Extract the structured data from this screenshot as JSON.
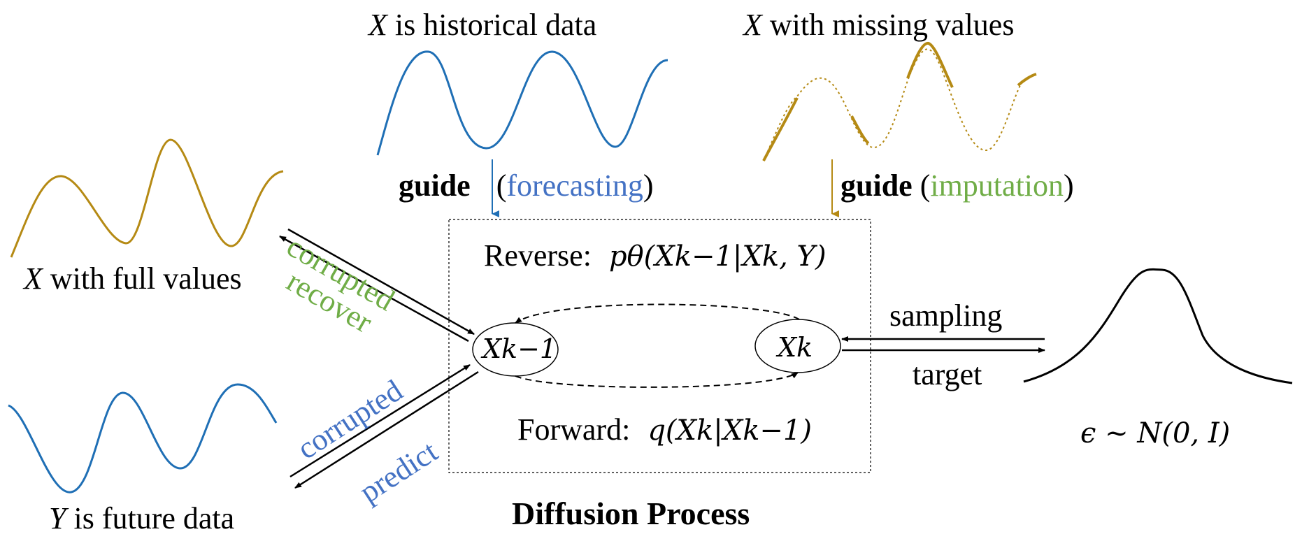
{
  "colors": {
    "blue": "#1F6FB5",
    "gold": "#B58A14",
    "green": "#70AD47",
    "text_blue": "#4472C4",
    "black": "#000000"
  },
  "top_left": {
    "var": "X",
    "text": " is historical data"
  },
  "top_right": {
    "var": "X",
    "text": " with missing values"
  },
  "guide_forecast": {
    "word": "guide",
    "open": " (",
    "mode": "forecasting",
    "close": ")"
  },
  "guide_impute": {
    "word": "guide",
    "open": " (",
    "mode": "imputation",
    "close": ")"
  },
  "left_top": {
    "var": "X",
    "text": " with full values"
  },
  "left_bottom": {
    "var": "Y",
    "text": " is future data"
  },
  "arrow_labels": {
    "corrupted_top": "corrupted",
    "recover": "recover",
    "corrupted_bottom": "corrupted",
    "predict": "predict",
    "sampling": "sampling",
    "target": "target"
  },
  "diffusion": {
    "reverse_label": "Reverse:",
    "reverse_formula": "pθ(Xk−1|Xk, Y)",
    "forward_label": "Forward:",
    "forward_formula": "q(Xk|Xk−1)",
    "node_left": "Xk−1",
    "node_right": "Xk",
    "title": "Diffusion Process"
  },
  "noise": {
    "formula": "ϵ ~ N(0, I)"
  }
}
